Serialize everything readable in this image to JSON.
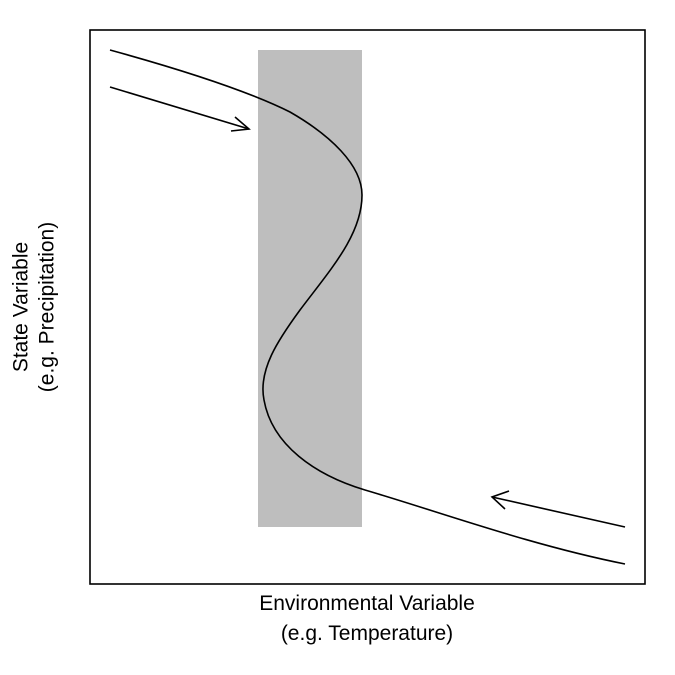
{
  "diagram": {
    "x_axis_label_line1": "Environmental Variable",
    "x_axis_label_line2": "(e.g. Temperature)",
    "y_axis_label_line1": "State Variable",
    "y_axis_label_line2": "(e.g. Precipitation)"
  },
  "colors": {
    "background": "#ffffff",
    "frame": "#000000",
    "bistable_region": "#bebebe",
    "curve": "#000000",
    "arrows": "#000000"
  }
}
